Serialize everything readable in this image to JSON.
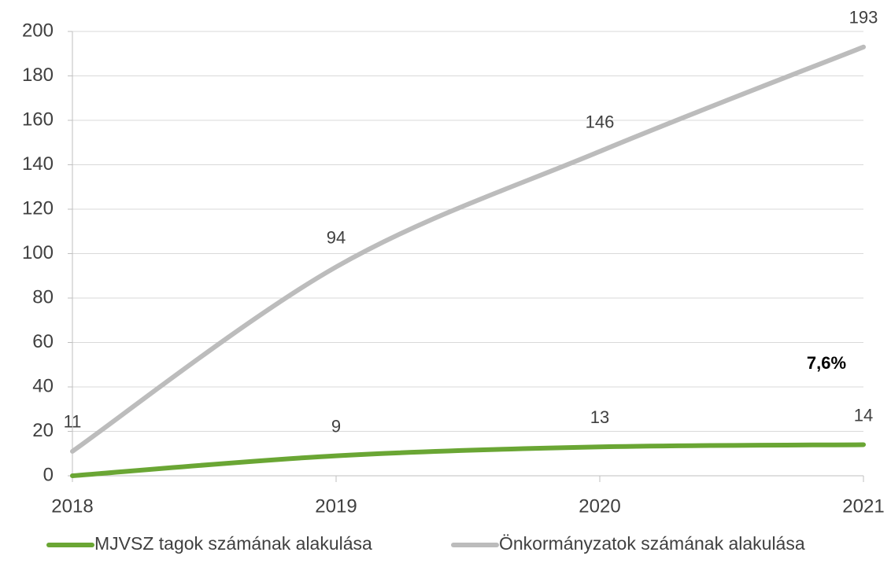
{
  "chart_data": {
    "type": "line",
    "categories": [
      "2018",
      "2019",
      "2020",
      "2021"
    ],
    "series": [
      {
        "name": "MJVSZ tagok számának alakulása",
        "color": "#6aa634",
        "values": [
          0,
          9,
          13,
          14
        ],
        "value_labels": [
          null,
          "9",
          "13",
          "14"
        ]
      },
      {
        "name": "Önkormányzatok számának alakulása",
        "color": "#bcbcbc",
        "values": [
          11,
          94,
          146,
          193
        ]
      }
    ],
    "ylim": [
      0,
      200
    ],
    "yticks": [
      0,
      20,
      40,
      60,
      80,
      100,
      120,
      140,
      160,
      180,
      200
    ],
    "grid": true,
    "smooth": true,
    "legend": "bottom",
    "annotations": [
      "7,6%"
    ]
  }
}
